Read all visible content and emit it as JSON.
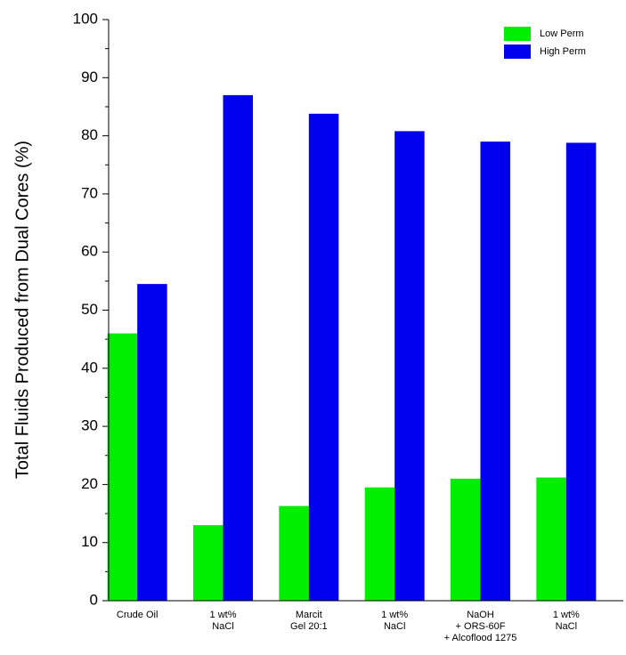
{
  "chart_data": {
    "type": "bar",
    "y_label": "Total Fluids Produced from Dual Cores (%)",
    "categories": [
      [
        "Crude Oil"
      ],
      [
        "1 wt%",
        "NaCl"
      ],
      [
        "Marcit",
        "Gel 20:1"
      ],
      [
        "1 wt%",
        "NaCl"
      ],
      [
        "NaOH",
        "+ ORS-60F",
        "+ Alcoflood 1275"
      ],
      [
        "1 wt%",
        "NaCl"
      ]
    ],
    "series": [
      {
        "name": "Low Perm",
        "color": "#00ee00",
        "values": [
          46,
          13,
          16.3,
          19.5,
          21,
          21.2
        ]
      },
      {
        "name": "High Perm",
        "color": "#0000ee",
        "values": [
          54.5,
          87,
          83.8,
          80.8,
          79,
          78.8
        ]
      }
    ],
    "ylim": [
      0,
      100
    ],
    "yticks": [
      0,
      10,
      20,
      30,
      40,
      50,
      60,
      70,
      80,
      90,
      100
    ],
    "minor_yticks": [
      5,
      15,
      25,
      35,
      45,
      55,
      65,
      75,
      85,
      95
    ],
    "grid": false,
    "legend": "top-right"
  }
}
